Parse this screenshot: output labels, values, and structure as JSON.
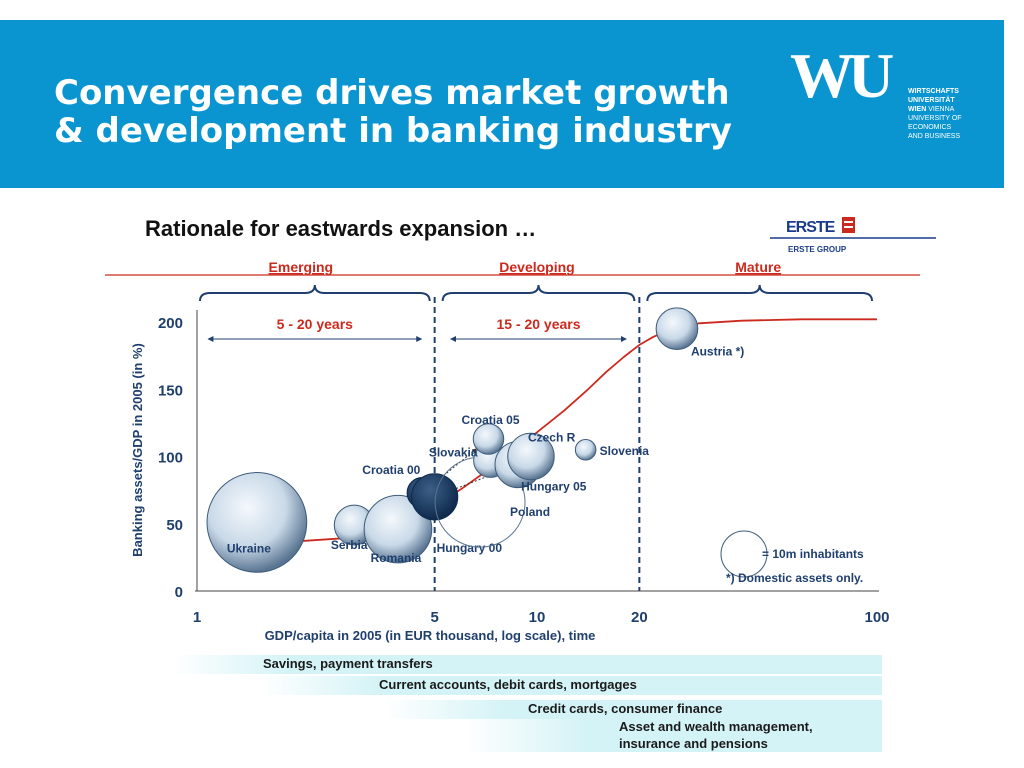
{
  "slide": {
    "title_line1": "Convergence drives market growth",
    "title_line2": "& development in banking industry",
    "logo": {
      "mark": "WU",
      "lines": [
        "WIRTSCHAFTS",
        "UNIVERSITÄT",
        "WIEN",
        "VIENNA",
        "UNIVERSITY OF",
        "ECONOMICS",
        "AND BUSINESS"
      ]
    },
    "header_color": "#0a95d0"
  },
  "chart_data": {
    "type": "scatter",
    "title": "Rationale for eastwards expansion …",
    "brand": "ERSTE",
    "brand_sub": "ERSTE GROUP",
    "xlabel": "GDP/capita in 2005 (in EUR thousand, log scale), time",
    "ylabel": "Banking assets/GDP in 2005 (in %)",
    "x_scale": "log",
    "xlim": [
      1,
      100
    ],
    "ylim": [
      0,
      200
    ],
    "x_ticks": [
      1,
      5,
      10,
      20,
      100
    ],
    "y_ticks": [
      0,
      50,
      100,
      150,
      200
    ],
    "grid": false,
    "phases": [
      {
        "name": "Emerging",
        "from": 1,
        "to": 5,
        "duration": "5 - 20 years"
      },
      {
        "name": "Developing",
        "from": 5,
        "to": 20,
        "duration": "15 - 20 years"
      },
      {
        "name": "Mature",
        "from": 20,
        "to": 100
      }
    ],
    "points": [
      {
        "label": "Ukraine",
        "x": 1.5,
        "y": 51,
        "pop_m": 47,
        "style": "light"
      },
      {
        "label": "Serbia",
        "x": 2.9,
        "y": 49,
        "pop_m": 7.5,
        "style": "light"
      },
      {
        "label": "Romania",
        "x": 3.9,
        "y": 46,
        "pop_m": 21.6,
        "style": "light"
      },
      {
        "label": "Croatia 00",
        "x": 4.6,
        "y": 73,
        "pop_m": 4.4,
        "style": "dark"
      },
      {
        "label": "Hungary 00",
        "x": 5.0,
        "y": 70,
        "pop_m": 10.1,
        "style": "dark"
      },
      {
        "label": "Poland",
        "x": 6.8,
        "y": 66,
        "pop_m": 38.2,
        "style": "outline"
      },
      {
        "label": "Slovakia",
        "x": 7.3,
        "y": 97,
        "pop_m": 5.4,
        "style": "light"
      },
      {
        "label": "Croatia 05",
        "x": 7.2,
        "y": 113,
        "pop_m": 4.4,
        "style": "light"
      },
      {
        "label": "Hungary 05",
        "x": 8.8,
        "y": 94,
        "pop_m": 10.1,
        "style": "light"
      },
      {
        "label": "Czech R",
        "x": 9.6,
        "y": 100,
        "pop_m": 10.2,
        "style": "light"
      },
      {
        "label": "Slovenia",
        "x": 13.9,
        "y": 105,
        "pop_m": 2.0,
        "style": "light"
      },
      {
        "label": "Austria *)",
        "x": 25.8,
        "y": 195,
        "pop_m": 8.2,
        "style": "light"
      }
    ],
    "trend_line": {
      "x": [
        1.4,
        2,
        3,
        4,
        5,
        6,
        7,
        8,
        9,
        10,
        12,
        14,
        16,
        18,
        20,
        22,
        25,
        30,
        40,
        60,
        100
      ],
      "y": [
        35,
        37,
        40,
        47,
        63,
        76,
        88,
        99,
        109,
        118,
        134,
        149,
        163,
        174,
        183,
        189,
        195,
        199,
        201,
        202,
        202
      ]
    },
    "arrows": [
      {
        "from": "Croatia 00",
        "to": "Croatia 05"
      },
      {
        "from": "Hungary 00",
        "to": "Hungary 05"
      }
    ],
    "legend": {
      "bubble_note": "= 10m inhabitants",
      "footnote": "*) Domestic assets only.",
      "placement": "bottom-right"
    },
    "product_bands": [
      {
        "label": "Savings, payment transfers",
        "start": 1
      },
      {
        "label": "Current accounts, debit cards, mortgages",
        "start": 3
      },
      {
        "label": "Credit cards, consumer finance",
        "start": 6
      },
      {
        "label": "Asset and wealth management,",
        "label2": "insurance and pensions",
        "start": 9
      }
    ],
    "colors": {
      "accent_red": "#cc2a1e",
      "navy": "#1f3f6e",
      "bubble_light": "#c9d9e8",
      "band": "#d4f3f6"
    }
  }
}
